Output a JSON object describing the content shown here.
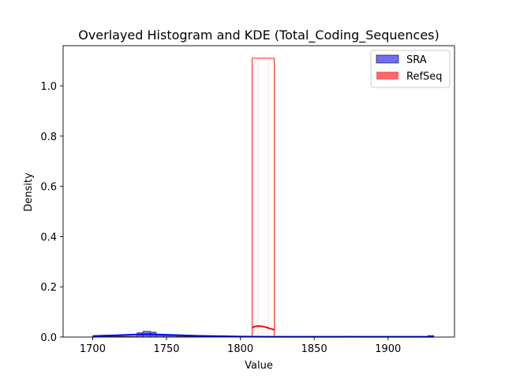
{
  "chart_data": {
    "type": "histogram",
    "title": "Overlayed Histogram and KDE (Total_Coding_Sequences)",
    "xlabel": "Value",
    "ylabel": "Density",
    "xlim": [
      1680,
      1945
    ],
    "ylim": [
      0,
      1.16
    ],
    "xticks": [
      1700,
      1750,
      1800,
      1850,
      1900
    ],
    "xtick_labels": [
      "1700",
      "1750",
      "1800",
      "1850",
      "1900"
    ],
    "yticks": [
      0.0,
      0.2,
      0.4,
      0.6,
      0.8,
      1.0
    ],
    "ytick_labels": [
      "0.0",
      "0.2",
      "0.4",
      "0.6",
      "0.8",
      "1.0"
    ],
    "grid": false,
    "legend_position": "top-right",
    "series": [
      {
        "name": "SRA",
        "kind": "histogram",
        "color": "#0000ff",
        "fill": "#6e6ef5",
        "bins": [
          {
            "x0": 1700,
            "x1": 1705,
            "y": 0.003
          },
          {
            "x0": 1705,
            "x1": 1710,
            "y": 0.003
          },
          {
            "x0": 1710,
            "x1": 1715,
            "y": 0.003
          },
          {
            "x0": 1715,
            "x1": 1720,
            "y": 0.003
          },
          {
            "x0": 1720,
            "x1": 1725,
            "y": 0.003
          },
          {
            "x0": 1725,
            "x1": 1730,
            "y": 0.003
          },
          {
            "x0": 1730,
            "x1": 1734,
            "y": 0.017
          },
          {
            "x0": 1734,
            "x1": 1739,
            "y": 0.023
          },
          {
            "x0": 1739,
            "x1": 1743,
            "y": 0.02
          },
          {
            "x0": 1743,
            "x1": 1748,
            "y": 0.008
          },
          {
            "x0": 1748,
            "x1": 1752,
            "y": 0.008
          },
          {
            "x0": 1752,
            "x1": 1757,
            "y": 0.008
          },
          {
            "x0": 1757,
            "x1": 1762,
            "y": 0.003
          },
          {
            "x0": 1762,
            "x1": 1767,
            "y": 0.003
          },
          {
            "x0": 1767,
            "x1": 1772,
            "y": 0.003
          },
          {
            "x0": 1872,
            "x1": 1877,
            "y": 0.003
          },
          {
            "x0": 1927,
            "x1": 1931,
            "y": 0.006
          }
        ],
        "kde": {
          "x": [
            1700,
            1710,
            1720,
            1730,
            1735,
            1740,
            1750,
            1760,
            1770,
            1780,
            1790,
            1800,
            1820,
            1850,
            1880,
            1900,
            1920,
            1931
          ],
          "y": [
            0.004,
            0.006,
            0.008,
            0.01,
            0.011,
            0.011,
            0.009,
            0.007,
            0.005,
            0.004,
            0.003,
            0.002,
            0.001,
            0.001,
            0.001,
            0.001,
            0.001,
            0.001
          ]
        }
      },
      {
        "name": "RefSeq",
        "kind": "histogram",
        "color": "#ff0000",
        "fill": "#f86a6a",
        "bins": [
          {
            "x0": 1808,
            "x1": 1823,
            "y": 1.11
          }
        ],
        "kde": {
          "x": [
            1808,
            1810,
            1812,
            1814,
            1816,
            1818,
            1820,
            1823
          ],
          "y": [
            0.038,
            0.042,
            0.044,
            0.043,
            0.041,
            0.038,
            0.034,
            0.029
          ]
        }
      }
    ]
  }
}
